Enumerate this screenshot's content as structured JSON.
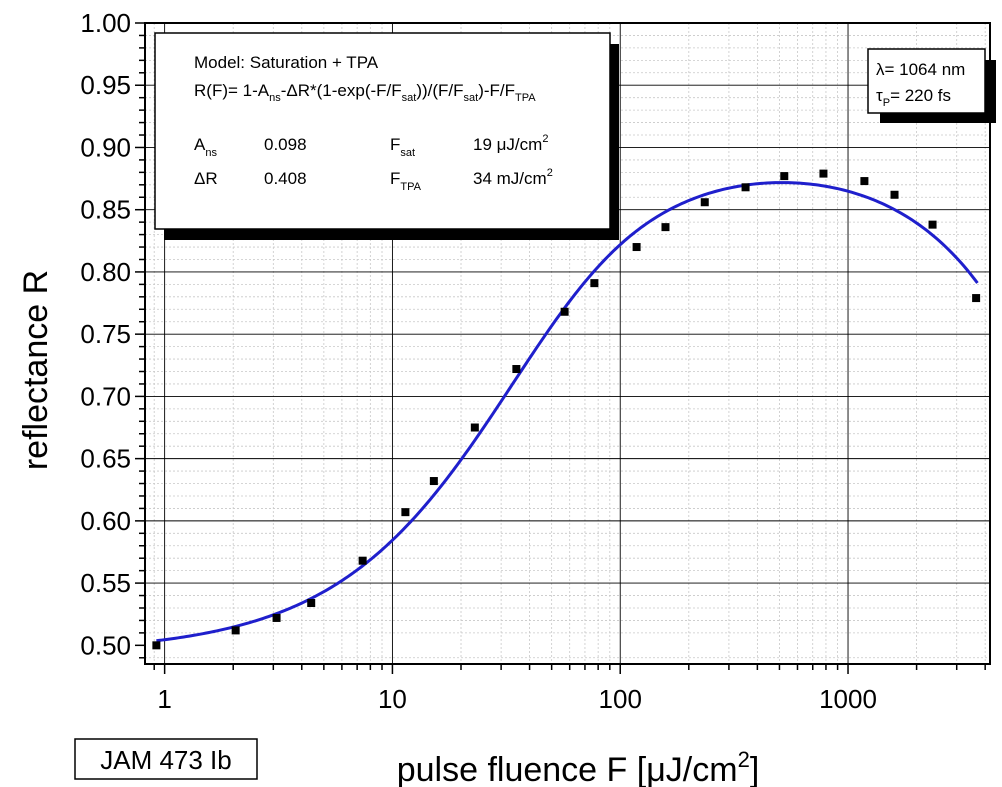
{
  "chart_data": {
    "type": "scatter",
    "ylabel": "reflectance R",
    "xlabel": {
      "main": "pulse fluence F [μJ/cm",
      "sup": "2",
      "close": "]"
    },
    "x_scale": "log",
    "xlim": [
      0.82,
      4200
    ],
    "ylim": [
      0.485,
      1.0
    ],
    "x_ticks": [
      1,
      10,
      100,
      1000
    ],
    "x_tick_labels": [
      "1",
      "10",
      "100",
      "1000"
    ],
    "y_ticks": [
      0.5,
      0.55,
      0.6,
      0.65,
      0.7,
      0.75,
      0.8,
      0.85,
      0.9,
      0.95,
      1.0
    ],
    "y_tick_labels": [
      "0.50",
      "0.55",
      "0.60",
      "0.65",
      "0.70",
      "0.75",
      "0.80",
      "0.85",
      "0.90",
      "0.95",
      "1.00"
    ],
    "grid": true,
    "series": [
      {
        "kind": "points",
        "color": "#000000",
        "x": [
          0.92,
          2.05,
          3.1,
          4.4,
          7.4,
          11.4,
          15.2,
          23,
          35,
          57,
          77,
          118,
          158,
          235,
          355,
          525,
          780,
          1180,
          1600,
          2350,
          3650
        ],
        "y": [
          0.5,
          0.512,
          0.522,
          0.534,
          0.568,
          0.607,
          0.632,
          0.675,
          0.722,
          0.768,
          0.791,
          0.82,
          0.836,
          0.856,
          0.868,
          0.877,
          0.879,
          0.873,
          0.862,
          0.838,
          0.779
        ]
      },
      {
        "kind": "fit",
        "color": "#1f1fcc",
        "x_range": [
          0.92,
          3700
        ],
        "model": {
          "A_ns": 0.098,
          "dR": 0.408,
          "F_sat": 19,
          "F_TPA": 34000
        }
      }
    ]
  },
  "model_box": {
    "title": "Model: Saturation + TPA",
    "formula": [
      {
        "t": "R(F)= 1-A"
      },
      {
        "t": "ns",
        "sub": true
      },
      {
        "t": "-ΔR*(1-exp(-F/F"
      },
      {
        "t": "sat",
        "sub": true
      },
      {
        "t": "))/(F/F"
      },
      {
        "t": "sat",
        "sub": true
      },
      {
        "t": ")-F/F"
      },
      {
        "t": "TPA",
        "sub": true
      }
    ],
    "params": [
      {
        "name": "A",
        "sub": "ns",
        "value": "0.098"
      },
      {
        "name": "ΔR",
        "sub": "",
        "value": "0.408"
      },
      {
        "name": "F",
        "sub": "sat",
        "value": "19 μJ/cm",
        "value_sup": "2"
      },
      {
        "name": "F",
        "sub": "TPA",
        "value": "34 mJ/cm",
        "value_sup": "2"
      }
    ]
  },
  "conditions_box": {
    "line1": "λ= 1064 nm",
    "line2_symbol": "τ",
    "line2_sub": "P",
    "line2_rest": "= 220 fs"
  },
  "sample_id": "JAM 473 Ib"
}
